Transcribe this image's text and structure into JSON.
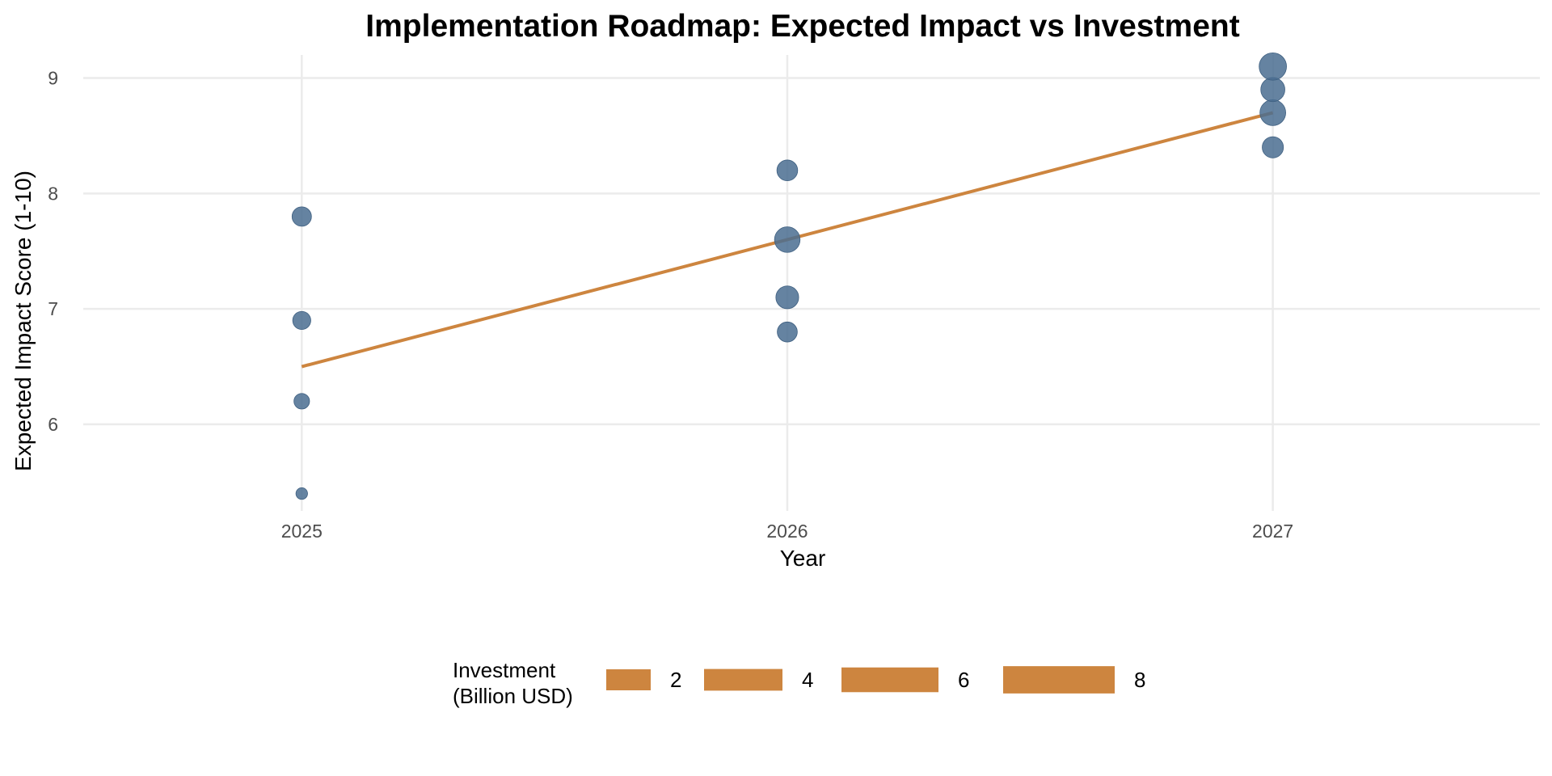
{
  "chart_data": {
    "type": "scatter",
    "title": "Implementation Roadmap: Expected Impact vs Investment",
    "xlabel": "Year",
    "ylabel": "Expected Impact Score (1-10)",
    "x_ticks": [
      "2025",
      "2026",
      "2027"
    ],
    "y_ticks": [
      "6",
      "7",
      "8",
      "9"
    ],
    "xlim": [
      2024.55,
      2027.55
    ],
    "ylim": [
      5.25,
      9.2
    ],
    "grid": true,
    "point_color": "#4a6d91",
    "trend_color": "#cd853f",
    "points": [
      {
        "x": 2025,
        "y": 5.4,
        "investment": 1.0
      },
      {
        "x": 2025,
        "y": 6.2,
        "investment": 2.5
      },
      {
        "x": 2025,
        "y": 6.9,
        "investment": 3.8
      },
      {
        "x": 2025,
        "y": 7.8,
        "investment": 4.6
      },
      {
        "x": 2026,
        "y": 6.8,
        "investment": 5.0
      },
      {
        "x": 2026,
        "y": 7.1,
        "investment": 7.0
      },
      {
        "x": 2026,
        "y": 7.6,
        "investment": 9.3
      },
      {
        "x": 2026,
        "y": 8.2,
        "investment": 5.5
      },
      {
        "x": 2027,
        "y": 8.4,
        "investment": 5.8
      },
      {
        "x": 2027,
        "y": 8.7,
        "investment": 9.5
      },
      {
        "x": 2027,
        "y": 8.9,
        "investment": 8.0
      },
      {
        "x": 2027,
        "y": 9.1,
        "investment": 11.0
      }
    ],
    "trend_line": {
      "x": [
        2025,
        2027
      ],
      "y": [
        6.5,
        8.7
      ]
    },
    "legend": {
      "title_line1": "Investment",
      "title_line2": "(Billion USD)",
      "placement": "bottom",
      "entries": [
        {
          "label": "2",
          "value": 2
        },
        {
          "label": "4",
          "value": 4
        },
        {
          "label": "6",
          "value": 6
        },
        {
          "label": "8",
          "value": 8
        }
      ]
    }
  }
}
